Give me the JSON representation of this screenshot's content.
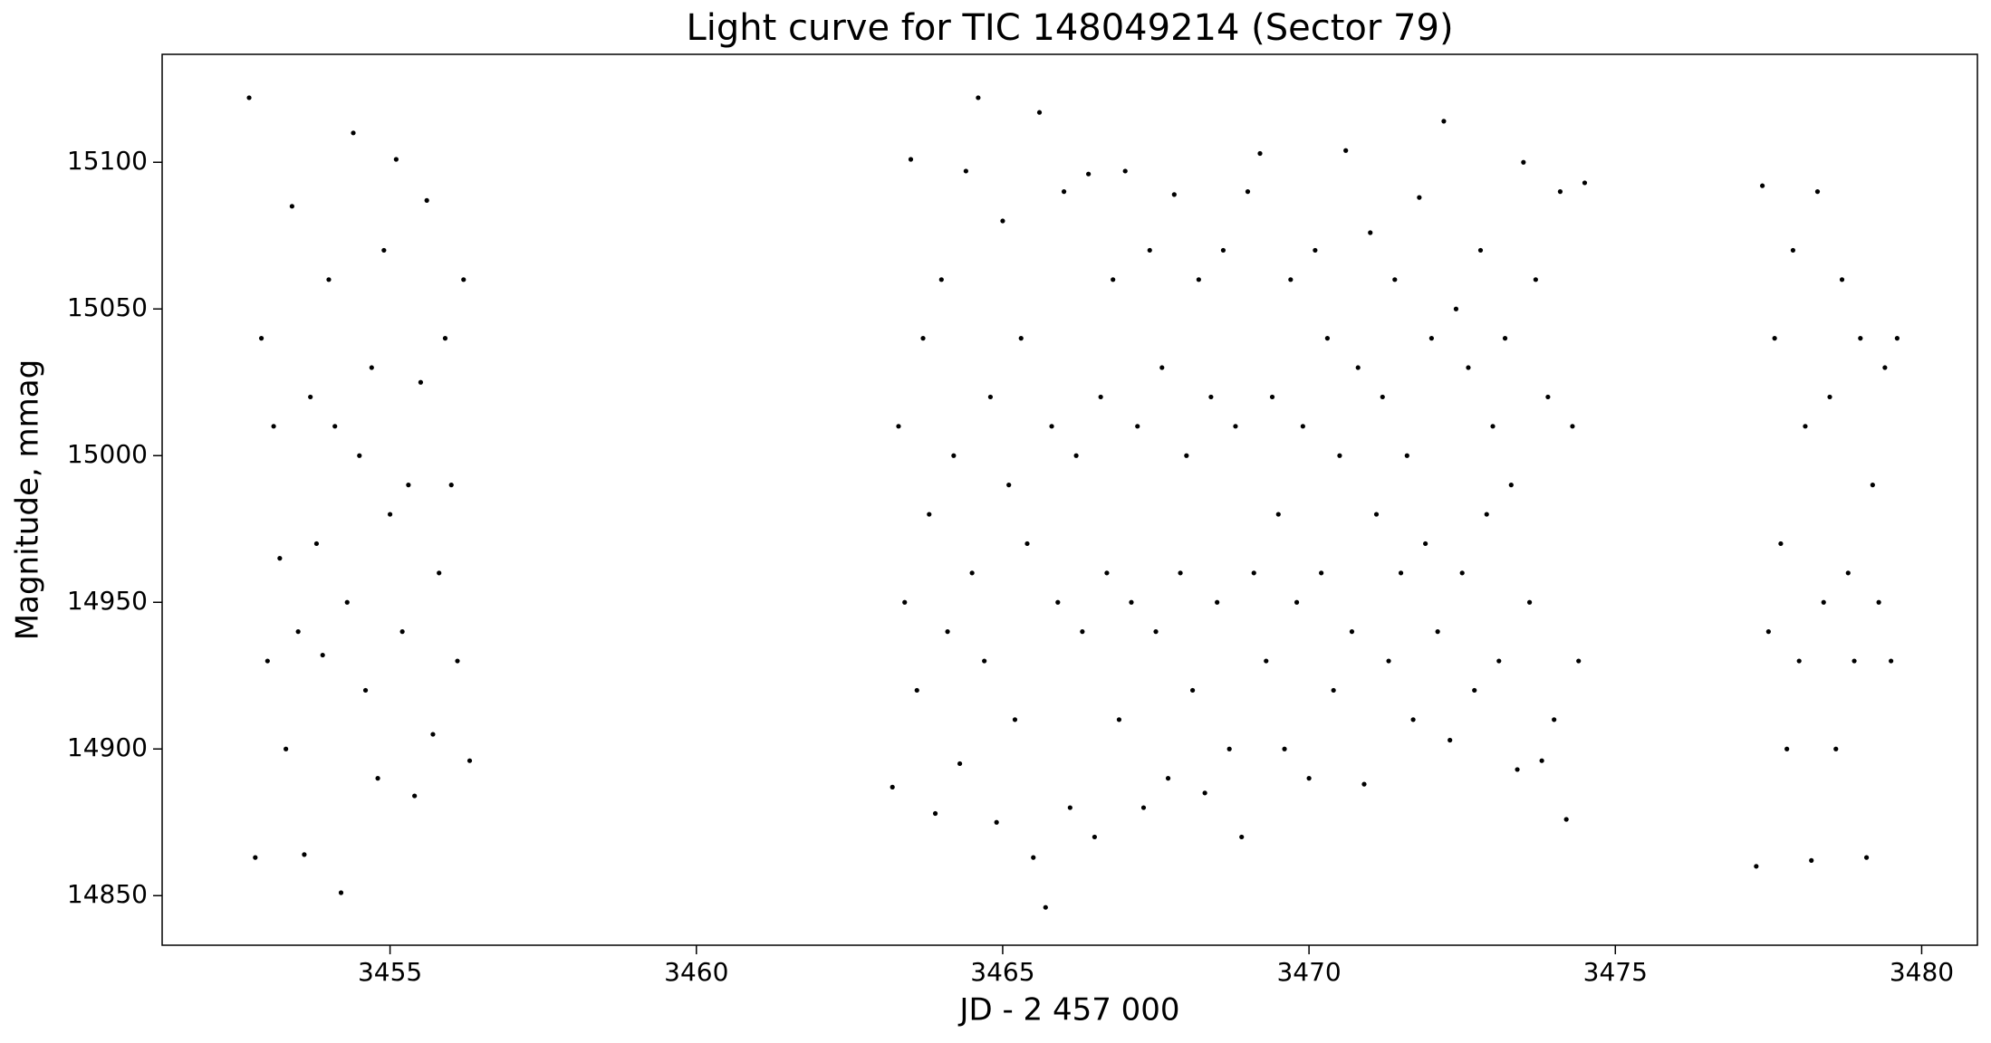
{
  "chart_data": {
    "type": "scatter",
    "title": "Light curve for TIC 148049214 (Sector 79)",
    "x_label": "JD - 2 457 000",
    "y_label": "Magnitude, mmag",
    "color": "#000000",
    "xlim": [
      3451.28,
      3480.91
    ],
    "ylim": [
      14833.1,
      15136.8
    ],
    "xticks": [
      3455,
      3460,
      3465,
      3470,
      3475,
      3480
    ],
    "yticks": [
      14850,
      14900,
      14950,
      15000,
      15050,
      15100
    ],
    "grid": false,
    "x": [
      3452.7,
      3452.8,
      3452.9,
      3453.0,
      3453.1,
      3453.2,
      3453.3,
      3453.4,
      3453.5,
      3453.6,
      3453.7,
      3453.8,
      3453.9,
      3454.0,
      3454.1,
      3454.2,
      3454.3,
      3454.4,
      3454.5,
      3454.6,
      3454.7,
      3454.8,
      3454.9,
      3455.0,
      3455.1,
      3455.2,
      3455.3,
      3455.4,
      3455.5,
      3455.6,
      3455.7,
      3455.8,
      3455.9,
      3456.0,
      3456.1,
      3456.2,
      3456.3,
      3463.2,
      3463.3,
      3463.4,
      3463.5,
      3463.6,
      3463.7,
      3463.8,
      3463.9,
      3464.0,
      3464.1,
      3464.2,
      3464.3,
      3464.4,
      3464.5,
      3464.6,
      3464.7,
      3464.8,
      3464.9,
      3465.0,
      3465.1,
      3465.2,
      3465.3,
      3465.4,
      3465.5,
      3465.6,
      3465.7,
      3465.8,
      3465.9,
      3466.0,
      3466.1,
      3466.2,
      3466.3,
      3466.4,
      3466.5,
      3466.6,
      3466.7,
      3466.8,
      3466.9,
      3467.0,
      3467.1,
      3467.2,
      3467.3,
      3467.4,
      3467.5,
      3467.6,
      3467.7,
      3467.8,
      3467.9,
      3468.0,
      3468.1,
      3468.2,
      3468.3,
      3468.4,
      3468.5,
      3468.6,
      3468.7,
      3468.8,
      3468.9,
      3469.0,
      3469.1,
      3469.2,
      3469.3,
      3469.4,
      3469.5,
      3469.6,
      3469.7,
      3469.8,
      3469.9,
      3470.0,
      3470.1,
      3470.2,
      3470.3,
      3470.4,
      3470.5,
      3470.6,
      3470.7,
      3470.8,
      3470.9,
      3471.0,
      3471.1,
      3471.2,
      3471.3,
      3471.4,
      3471.5,
      3471.6,
      3471.7,
      3471.8,
      3471.9,
      3472.0,
      3472.1,
      3472.2,
      3472.3,
      3472.4,
      3472.5,
      3472.6,
      3472.7,
      3472.8,
      3472.9,
      3473.0,
      3473.1,
      3473.2,
      3473.3,
      3473.4,
      3473.5,
      3473.6,
      3473.7,
      3473.8,
      3473.9,
      3474.0,
      3474.1,
      3474.2,
      3474.3,
      3474.4,
      3474.5,
      3477.3,
      3477.4,
      3477.5,
      3477.6,
      3477.7,
      3477.8,
      3477.9,
      3478.0,
      3478.1,
      3478.2,
      3478.3,
      3478.4,
      3478.5,
      3478.6,
      3478.7,
      3478.8,
      3478.9,
      3479.0,
      3479.1,
      3479.2,
      3479.3,
      3479.4,
      3479.5,
      3479.6
    ],
    "values": [
      15122,
      14863,
      15040,
      14930,
      15010,
      14965,
      14900,
      15085,
      14940,
      14864,
      15020,
      14970,
      14932,
      15060,
      15010,
      14851,
      14950,
      15110,
      15000,
      14920,
      15030,
      14890,
      15070,
      14980,
      15101,
      14940,
      14990,
      14884,
      15025,
      15087,
      14905,
      14960,
      15040,
      14990,
      14930,
      15060,
      14896,
      14887,
      15010,
      14950,
      15101,
      14920,
      15040,
      14980,
      14878,
      15060,
      14940,
      15000,
      14895,
      15097,
      14960,
      15122,
      14930,
      15020,
      14875,
      15080,
      14990,
      14910,
      15040,
      14970,
      14863,
      15117,
      14846,
      15010,
      14950,
      15090,
      14880,
      15000,
      14940,
      15096,
      14870,
      15020,
      14960,
      15060,
      14910,
      15097,
      14950,
      15010,
      14880,
      15070,
      14940,
      15030,
      14890,
      15089,
      14960,
      15000,
      14920,
      15060,
      14885,
      15020,
      14950,
      15070,
      14900,
      15010,
      14870,
      15090,
      14960,
      15103,
      14930,
      15020,
      14980,
      14900,
      15060,
      14950,
      15010,
      14890,
      15070,
      14960,
      15040,
      14920,
      15000,
      15104,
      14940,
      15030,
      14888,
      15076,
      14980,
      15020,
      14930,
      15060,
      14960,
      15000,
      14910,
      15088,
      14970,
      15040,
      14940,
      15114,
      14903,
      15050,
      14960,
      15030,
      14920,
      15070,
      14980,
      15010,
      14930,
      15040,
      14990,
      14893,
      15100,
      14950,
      15060,
      14896,
      15020,
      14910,
      15090,
      14876,
      15010,
      14930,
      15093,
      14860,
      15092,
      14940,
      15040,
      14970,
      14900,
      15070,
      14930,
      15010,
      14862,
      15090,
      14950,
      15020,
      14900,
      15060,
      14960,
      14930,
      15040,
      14863,
      14990,
      14950,
      15030,
      14930,
      15040
    ]
  }
}
